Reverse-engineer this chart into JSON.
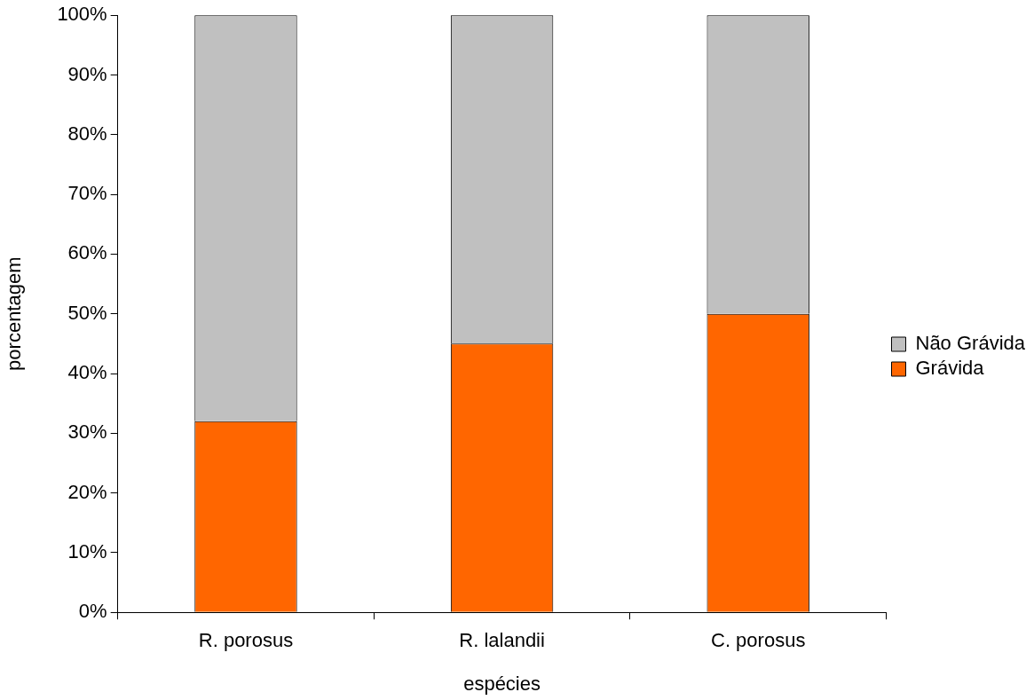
{
  "chart_data": {
    "type": "bar",
    "stacked": true,
    "xlabel": "espécies",
    "ylabel": "porcentagem",
    "categories": [
      "R. porosus",
      "R. lalandii",
      "C. porosus"
    ],
    "series": [
      {
        "name": "Grávida",
        "color": "#ff6600",
        "values": [
          32,
          45,
          50
        ]
      },
      {
        "name": "Não Grávida",
        "color": "#c0c0c0",
        "values": [
          68,
          55,
          50
        ]
      }
    ],
    "ylim": [
      0,
      100
    ],
    "yticks": [
      {
        "value": 0,
        "label": "0%"
      },
      {
        "value": 10,
        "label": "10%"
      },
      {
        "value": 20,
        "label": "20%"
      },
      {
        "value": 30,
        "label": "30%"
      },
      {
        "value": 40,
        "label": "40%"
      },
      {
        "value": 50,
        "label": "50%"
      },
      {
        "value": 60,
        "label": "60%"
      },
      {
        "value": 70,
        "label": "70%"
      },
      {
        "value": 80,
        "label": "80%"
      },
      {
        "value": 90,
        "label": "90%"
      },
      {
        "value": 100,
        "label": "100%"
      }
    ],
    "legend": "right"
  }
}
